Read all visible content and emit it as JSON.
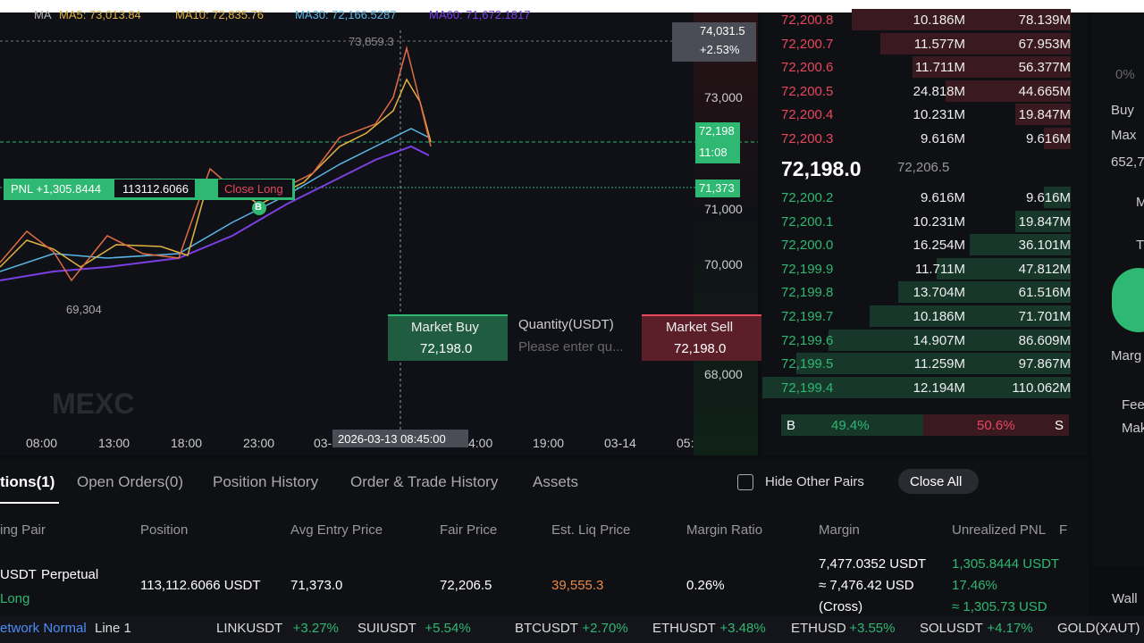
{
  "chart": {
    "ma_legend": [
      "MA",
      "MA5: 73,013.84",
      "MA10: 72,835.76",
      "MA30: 72,166.5287",
      "MA60: 71,672.1817"
    ],
    "price_axis": [
      "73,000",
      "71,000",
      "70,000",
      "68,000"
    ],
    "time_axis": [
      "08:00",
      "13:00",
      "18:00",
      "23:00",
      "03-",
      "4:00",
      "19:00",
      "03-14",
      "05:"
    ],
    "high_label": "73,859.3",
    "low_label": "69,304",
    "crosshair_price": "74,031.5",
    "crosshair_pct": "+2.53%",
    "current_price": "72,198",
    "countdown": "11:08",
    "entry_price": "71,373",
    "crosshair_time": "2026-03-13 08:45:00",
    "pnl_tag": {
      "pnl": "PNL +1,305.8444",
      "qty": "113112.6066",
      "close": "Close Long"
    },
    "buy_marker": "B",
    "watermark": "MEXC"
  },
  "quick_trade": {
    "buy_label": "Market Buy",
    "buy_price": "72,198.0",
    "qty_label": "Quantity(USDT)",
    "qty_placeholder": "Please enter qu...",
    "sell_label": "Market Sell",
    "sell_price": "72,198.0"
  },
  "order_book": {
    "asks": [
      [
        "72,200.8",
        "10.186M",
        "78.139M"
      ],
      [
        "72,200.7",
        "11.577M",
        "67.953M"
      ],
      [
        "72,200.6",
        "11.711M",
        "56.377M"
      ],
      [
        "72,200.5",
        "24.818M",
        "44.665M"
      ],
      [
        "72,200.4",
        "10.231M",
        "19.847M"
      ],
      [
        "72,200.3",
        "9.616M",
        "9.616M"
      ]
    ],
    "last_price": "72,198.0",
    "mark_price": "72,206.5",
    "bids": [
      [
        "72,200.2",
        "9.616M",
        "9.616M"
      ],
      [
        "72,200.1",
        "10.231M",
        "19.847M"
      ],
      [
        "72,200.0",
        "16.254M",
        "36.101M"
      ],
      [
        "72,199.9",
        "11.711M",
        "47.812M"
      ],
      [
        "72,199.8",
        "13.704M",
        "61.516M"
      ],
      [
        "72,199.7",
        "10.186M",
        "71.701M"
      ],
      [
        "72,199.6",
        "14.907M",
        "86.609M"
      ],
      [
        "72,199.5",
        "11.259M",
        "97.867M"
      ],
      [
        "72,199.4",
        "12.194M",
        "110.062M"
      ]
    ],
    "buy_letter": "B",
    "buy_ratio": "49.4%",
    "sell_ratio": "50.6%",
    "sell_letter": "S"
  },
  "right_panel": [
    "0%",
    "Buy",
    "Max",
    "652,7",
    "M",
    "T",
    "Marg",
    "Fee",
    "Mak",
    "Wall"
  ],
  "tabs": [
    "tions(1)",
    "Open Orders(0)",
    "Position History",
    "Order & Trade History",
    "Assets"
  ],
  "hide_other": "Hide Other Pairs",
  "close_all": "Close All",
  "table": {
    "headers": [
      "ing Pair",
      "Position",
      "Avg Entry Price",
      "Fair Price",
      "Est. Liq Price",
      "Margin Ratio",
      "Margin",
      "Unrealized PNL",
      "F"
    ],
    "row": {
      "pair": "USDT",
      "kind": "Perpetual",
      "side": "Long",
      "position": "113,112.6066 USDT",
      "entry": "71,373.0",
      "fair": "72,206.5",
      "liq": "39,555.3",
      "ratio": "0.26%",
      "margin": [
        "7,477.0352 USDT",
        "≈ 7,476.42 USD",
        "(Cross)"
      ],
      "pnl": [
        "1,305.8444 USDT",
        "17.46%",
        "≈ 1,305.73 USD"
      ]
    }
  },
  "ticker": {
    "network": "etwork Normal",
    "line": "Line 1",
    "items": [
      {
        "name": "LINKUSDT",
        "change": "+3.27%"
      },
      {
        "name": "SUIUSDT",
        "change": "+5.54%"
      },
      {
        "name": "BTCUSDT",
        "change": "+2.70%"
      },
      {
        "name": "ETHUSDT",
        "change": "+3.48%"
      },
      {
        "name": "ETHUSD",
        "change": "+3.55%"
      },
      {
        "name": "SOLUSDT",
        "change": "+4.17%"
      },
      {
        "name": "GOLD(XAUT)",
        "change": null
      }
    ]
  }
}
